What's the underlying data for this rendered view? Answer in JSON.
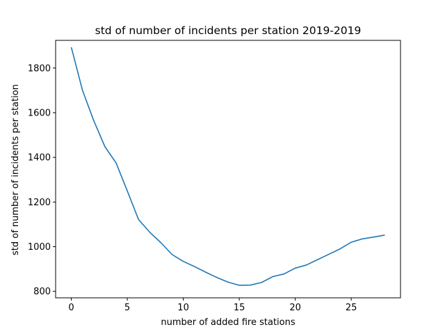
{
  "chart_data": {
    "type": "line",
    "title": "std of number of incidents per station 2019-2019",
    "xlabel": "number of added fire stations",
    "ylabel": "std of number of incidents per station",
    "xlim": [
      -1.4,
      29.4
    ],
    "ylim": [
      771,
      1924
    ],
    "xticks": [
      0,
      5,
      10,
      15,
      20,
      25
    ],
    "yticks": [
      800,
      1000,
      1200,
      1400,
      1600,
      1800
    ],
    "grid": false,
    "series_color": "#1f77b4",
    "series": [
      {
        "x": [
          0,
          1,
          2,
          3,
          4,
          5,
          6,
          7,
          8,
          9,
          10,
          11,
          12,
          13,
          14,
          15,
          16,
          17,
          18,
          19,
          20,
          21,
          22,
          23,
          24,
          25,
          26,
          27,
          28
        ],
        "values": [
          1893,
          1700,
          1565,
          1448,
          1375,
          1250,
          1122,
          1065,
          1018,
          965,
          934,
          911,
          886,
          862,
          841,
          827,
          828,
          840,
          866,
          878,
          904,
          918,
          942,
          966,
          990,
          1020,
          1035,
          1043,
          1052
        ]
      }
    ]
  }
}
